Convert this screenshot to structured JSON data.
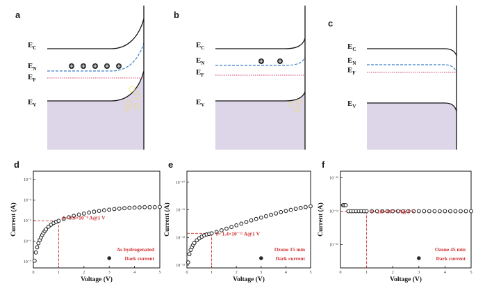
{
  "figure": {
    "panels_top": [
      {
        "id": "a",
        "label": "a",
        "levels": [
          "E_C",
          "E_N",
          "E_F",
          "E_V"
        ],
        "electrons": 5,
        "holes_visible": true
      },
      {
        "id": "b",
        "label": "b",
        "levels": [
          "E_C",
          "E_N",
          "E_F",
          "E_V"
        ],
        "electrons": 2,
        "holes_visible": true
      },
      {
        "id": "c",
        "label": "c",
        "levels": [
          "E_C",
          "E_N",
          "E_F",
          "E_V"
        ],
        "electrons": 0,
        "holes_visible": false
      }
    ],
    "level_labels": {
      "EC": "E",
      "EC_sub": "C",
      "EN": "E",
      "EN_sub": "N",
      "EF": "E",
      "EF_sub": "F",
      "EV": "E",
      "EV_sub": "V"
    },
    "colors": {
      "valence_fill": "#ddd5e8",
      "fermi_line": "#d04060",
      "en_line": "#3a7ec8",
      "holes": "#f0e040",
      "annotation": "#d03030",
      "marker": "#2a2a2a"
    }
  },
  "chart_data": [
    {
      "id": "d",
      "label": "d",
      "type": "scatter",
      "xlabel": "Voltage (V)",
      "ylabel": "Current (A)",
      "xlim": [
        0,
        5
      ],
      "ylim_log10": [
        -7.3,
        -2.6
      ],
      "x_ticks": [
        "0",
        "1",
        "2",
        "3",
        "4",
        "5"
      ],
      "y_ticks": [
        "10⁻³",
        "10⁻⁴",
        "10⁻⁵",
        "10⁻⁶",
        "10⁻⁷"
      ],
      "annotation_value": "I= 9.8×10⁻⁶ A@1 V",
      "annotation_x": 1,
      "annotation_log10y": -5.01,
      "legend": [
        "As hydrogenated",
        "Dark current"
      ],
      "series": [
        {
          "x": [
            0.05,
            0.1,
            0.15,
            0.2,
            0.25,
            0.3,
            0.35,
            0.4,
            0.45,
            0.5,
            0.6,
            0.7,
            0.8,
            0.9,
            1.0,
            1.2,
            1.4,
            1.6,
            1.8,
            2.0,
            2.2,
            2.4,
            2.6,
            2.8,
            3.0,
            3.2,
            3.4,
            3.6,
            3.8,
            4.0,
            4.2,
            4.4,
            4.6,
            4.8,
            5.0
          ],
          "log10y": [
            -6.95,
            -6.55,
            -6.3,
            -6.1,
            -5.95,
            -5.82,
            -5.7,
            -5.6,
            -5.51,
            -5.43,
            -5.3,
            -5.2,
            -5.12,
            -5.06,
            -5.01,
            -4.92,
            -4.84,
            -4.77,
            -4.71,
            -4.66,
            -4.61,
            -4.57,
            -4.53,
            -4.5,
            -4.47,
            -4.44,
            -4.42,
            -4.4,
            -4.38,
            -4.37,
            -4.36,
            -4.35,
            -4.35,
            -4.35,
            -4.34
          ]
        }
      ]
    },
    {
      "id": "e",
      "label": "e",
      "type": "scatter",
      "xlabel": "Voltage (V)",
      "ylabel": "Current (A)",
      "xlim": [
        0,
        5
      ],
      "ylim_log10": [
        -13.1,
        -9.6
      ],
      "x_ticks": [
        "0",
        "1",
        "2",
        "3",
        "4",
        "5"
      ],
      "y_ticks": [
        "10⁻¹⁰",
        "10⁻¹¹",
        "10⁻¹²",
        "10⁻¹³"
      ],
      "annotation_value": "I= 1.4×10⁻¹² A@1 V",
      "annotation_x": 1,
      "annotation_log10y": -11.85,
      "legend": [
        "Ozone 15 min",
        "Dark current"
      ],
      "series": [
        {
          "x": [
            0.05,
            0.1,
            0.15,
            0.2,
            0.25,
            0.3,
            0.4,
            0.5,
            0.6,
            0.7,
            0.8,
            0.9,
            1.0,
            1.2,
            1.4,
            1.6,
            1.8,
            2.0,
            2.2,
            2.4,
            2.6,
            2.8,
            3.0,
            3.2,
            3.4,
            3.6,
            3.8,
            4.0,
            4.2,
            4.4,
            4.6,
            4.8,
            5.0
          ],
          "log10y": [
            -12.9,
            -12.6,
            -12.45,
            -12.35,
            -12.27,
            -12.2,
            -12.1,
            -12.03,
            -11.97,
            -11.92,
            -11.89,
            -11.87,
            -11.85,
            -11.8,
            -11.74,
            -11.68,
            -11.62,
            -11.56,
            -11.5,
            -11.44,
            -11.38,
            -11.33,
            -11.28,
            -11.23,
            -11.18,
            -11.13,
            -11.08,
            -11.04,
            -11.0,
            -10.96,
            -10.93,
            -10.9,
            -10.87
          ]
        }
      ]
    },
    {
      "id": "f",
      "label": "f",
      "type": "scatter",
      "xlabel": "Voltage (V)",
      "ylabel": "Current (A)",
      "xlim": [
        0,
        5
      ],
      "ylim_log10": [
        -15.7,
        -12.8
      ],
      "x_ticks": [
        "0",
        "1",
        "2",
        "3",
        "4",
        "5"
      ],
      "y_ticks": [
        "10⁻¹³",
        "10⁻¹⁴",
        "10⁻¹⁵"
      ],
      "annotation_value": "I= 1.0×10⁻¹⁴ A@1 V",
      "annotation_x": 1,
      "annotation_log10y": -14.0,
      "legend": [
        "Ozone 45 min",
        "Dark current"
      ],
      "series": [
        {
          "x": [
            0.1,
            0.15,
            0.2,
            0.3,
            0.4,
            0.5,
            0.6,
            0.7,
            0.8,
            0.9,
            1.0,
            1.2,
            1.4,
            1.6,
            1.8,
            2.0,
            2.2,
            2.4,
            2.6,
            2.8,
            3.0,
            3.2,
            3.4,
            3.6,
            3.8,
            4.0,
            4.2,
            4.4,
            4.6,
            4.8,
            5.0
          ],
          "log10y": [
            -13.82,
            -13.82,
            -13.82,
            -14.0,
            -14.0,
            -14.0,
            -14.0,
            -14.0,
            -14.0,
            -14.0,
            -14.0,
            -14.0,
            -14.0,
            -14.0,
            -14.0,
            -14.0,
            -14.0,
            -14.0,
            -14.0,
            -14.0,
            -14.0,
            -14.0,
            -14.0,
            -14.0,
            -14.0,
            -14.0,
            -14.0,
            -14.0,
            -14.0,
            -14.0,
            -14.0
          ]
        }
      ]
    }
  ]
}
